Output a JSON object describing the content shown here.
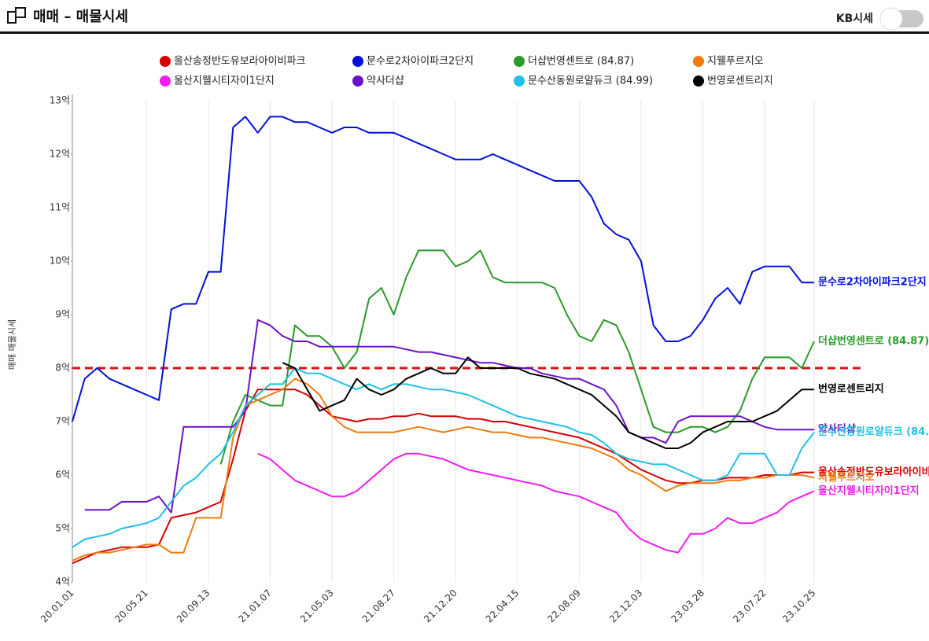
{
  "header": {
    "title": "매매 – 매물시세",
    "toggle_label": "KB시세"
  },
  "chart_data": {
    "type": "line",
    "ylabel": "매매 매물시세",
    "categories": [
      "20.01.01",
      null,
      null,
      null,
      null,
      null,
      "20.05.21",
      null,
      null,
      null,
      null,
      "20.09.13",
      null,
      null,
      null,
      null,
      "21.01.07",
      null,
      null,
      null,
      null,
      "21.05.03",
      null,
      null,
      null,
      null,
      "21.08.27",
      null,
      null,
      null,
      null,
      "21.12.20",
      null,
      null,
      null,
      null,
      "22.04.15",
      null,
      null,
      null,
      null,
      "22.08.09",
      null,
      null,
      null,
      null,
      "22.12.03",
      null,
      null,
      null,
      null,
      "23.03.28",
      null,
      null,
      null,
      null,
      "23.07.22",
      null,
      null,
      null,
      "23.10.25"
    ],
    "ylim": [
      4,
      13
    ],
    "yticks": [
      {
        "value": 4,
        "label": "4억"
      },
      {
        "value": 5,
        "label": "5억"
      },
      {
        "value": 6,
        "label": "6억"
      },
      {
        "value": 7,
        "label": "7억"
      },
      {
        "value": 8,
        "label": "8억"
      },
      {
        "value": 9,
        "label": "9억"
      },
      {
        "value": 10,
        "label": "10억"
      },
      {
        "value": 11,
        "label": "11억"
      },
      {
        "value": 12,
        "label": "12억"
      },
      {
        "value": 13,
        "label": "13억"
      }
    ],
    "grid": true,
    "reference_line": {
      "value": 8,
      "color": "#e01010"
    },
    "series": [
      {
        "name": "울산송정반도유보라아이비파크",
        "color": "#d40000",
        "values": [
          4.35,
          4.45,
          4.55,
          4.6,
          4.65,
          4.65,
          4.65,
          4.7,
          5.2,
          5.25,
          5.3,
          5.4,
          5.5,
          6.3,
          7.2,
          7.6,
          7.6,
          7.6,
          7.6,
          7.5,
          7.3,
          7.1,
          7.05,
          7.0,
          7.05,
          7.05,
          7.1,
          7.1,
          7.15,
          7.1,
          7.1,
          7.1,
          7.05,
          7.05,
          7.0,
          7.0,
          6.95,
          6.9,
          6.85,
          6.8,
          6.75,
          6.7,
          6.6,
          6.5,
          6.4,
          6.25,
          6.1,
          6.0,
          5.9,
          5.85,
          5.85,
          5.9,
          5.9,
          5.95,
          5.95,
          5.95,
          6.0,
          6.0,
          6.0,
          6.05,
          6.05
        ]
      },
      {
        "name": "문수로2차아이파크2단지",
        "color": "#0010d8",
        "values": [
          7.0,
          7.8,
          8.0,
          7.8,
          7.7,
          7.6,
          7.5,
          7.4,
          9.1,
          9.2,
          9.2,
          9.8,
          9.8,
          12.5,
          12.7,
          12.4,
          12.7,
          12.7,
          12.6,
          12.6,
          12.5,
          12.4,
          12.5,
          12.5,
          12.4,
          12.4,
          12.4,
          12.3,
          12.2,
          12.1,
          12.0,
          11.9,
          11.9,
          11.9,
          12.0,
          11.9,
          11.8,
          11.7,
          11.6,
          11.5,
          11.5,
          11.5,
          11.2,
          10.7,
          10.5,
          10.4,
          10.0,
          8.8,
          8.5,
          8.5,
          8.6,
          8.9,
          9.3,
          9.5,
          9.2,
          9.8,
          9.9,
          9.9,
          9.9,
          9.6,
          9.6
        ]
      },
      {
        "name": "더샵번영센트로 (84.87)",
        "color": "#2a9a2a",
        "values": [
          null,
          null,
          null,
          null,
          null,
          null,
          null,
          null,
          null,
          null,
          null,
          null,
          6.2,
          7.0,
          7.5,
          7.4,
          7.3,
          7.3,
          8.8,
          8.6,
          8.6,
          8.4,
          8.0,
          8.3,
          9.3,
          9.5,
          9.0,
          9.7,
          10.2,
          10.2,
          10.2,
          9.9,
          10.0,
          10.2,
          9.7,
          9.6,
          9.6,
          9.6,
          9.6,
          9.5,
          9.0,
          8.6,
          8.5,
          8.9,
          8.8,
          8.3,
          7.6,
          6.9,
          6.8,
          6.8,
          6.9,
          6.9,
          6.8,
          6.9,
          7.2,
          7.8,
          8.2,
          8.2,
          8.2,
          8.0,
          8.5
        ]
      },
      {
        "name": "지웰푸르지오",
        "color": "#f07a10",
        "values": [
          4.4,
          4.5,
          4.55,
          4.55,
          4.6,
          4.65,
          4.7,
          4.7,
          4.55,
          4.55,
          5.2,
          5.2,
          5.2,
          6.7,
          7.3,
          7.4,
          7.5,
          7.6,
          7.8,
          7.7,
          7.5,
          7.1,
          6.9,
          6.8,
          6.8,
          6.8,
          6.8,
          6.85,
          6.9,
          6.85,
          6.8,
          6.85,
          6.9,
          6.85,
          6.8,
          6.8,
          6.75,
          6.7,
          6.7,
          6.65,
          6.6,
          6.55,
          6.5,
          6.4,
          6.3,
          6.1,
          6.0,
          5.85,
          5.7,
          5.8,
          5.85,
          5.85,
          5.85,
          5.9,
          5.9,
          5.95,
          5.95,
          6.0,
          6.0,
          6.0,
          5.95
        ]
      },
      {
        "name": "울산지웰시티자이1단지",
        "color": "#f01cf0",
        "values": [
          null,
          null,
          null,
          null,
          null,
          null,
          null,
          null,
          null,
          null,
          null,
          null,
          null,
          null,
          null,
          6.4,
          6.3,
          6.1,
          5.9,
          5.8,
          5.7,
          5.6,
          5.6,
          5.7,
          5.9,
          6.1,
          6.3,
          6.4,
          6.4,
          6.35,
          6.3,
          6.2,
          6.1,
          6.05,
          6.0,
          5.95,
          5.9,
          5.85,
          5.8,
          5.7,
          5.65,
          5.6,
          5.5,
          5.4,
          5.3,
          5.0,
          4.8,
          4.7,
          4.6,
          4.55,
          4.9,
          4.9,
          5.0,
          5.2,
          5.1,
          5.1,
          5.2,
          5.3,
          5.5,
          5.6,
          5.7
        ]
      },
      {
        "name": "약사더샵",
        "color": "#6a12c8",
        "values": [
          null,
          5.35,
          5.35,
          5.35,
          5.5,
          5.5,
          5.5,
          5.6,
          5.3,
          6.9,
          6.9,
          6.9,
          6.9,
          6.9,
          7.2,
          8.9,
          8.8,
          8.6,
          8.5,
          8.5,
          8.4,
          8.4,
          8.4,
          8.4,
          8.4,
          8.4,
          8.4,
          8.35,
          8.3,
          8.3,
          8.25,
          8.2,
          8.15,
          8.1,
          8.1,
          8.05,
          8.0,
          8.0,
          7.9,
          7.85,
          7.8,
          7.8,
          7.7,
          7.6,
          7.3,
          6.8,
          6.7,
          6.7,
          6.6,
          7.0,
          7.1,
          7.1,
          7.1,
          7.1,
          7.1,
          7.0,
          6.9,
          6.85,
          6.85,
          6.85,
          6.85
        ]
      },
      {
        "name": "문수산동원로얄듀크 (84.99)",
        "color": "#20c0e8",
        "values": [
          4.65,
          4.8,
          4.85,
          4.9,
          5.0,
          5.05,
          5.1,
          5.2,
          5.5,
          5.8,
          5.95,
          6.2,
          6.4,
          6.8,
          7.3,
          7.5,
          7.7,
          7.7,
          8.0,
          7.9,
          7.9,
          7.8,
          7.7,
          7.6,
          7.7,
          7.6,
          7.7,
          7.7,
          7.65,
          7.6,
          7.6,
          7.55,
          7.5,
          7.4,
          7.3,
          7.2,
          7.1,
          7.05,
          7.0,
          6.95,
          6.9,
          6.8,
          6.75,
          6.6,
          6.4,
          6.3,
          6.25,
          6.2,
          6.2,
          6.1,
          6.0,
          5.9,
          5.9,
          6.0,
          6.4,
          6.4,
          6.4,
          6.0,
          6.0,
          6.5,
          6.8
        ]
      },
      {
        "name": "번영로센트리지",
        "color": "#000000",
        "values": [
          null,
          null,
          null,
          null,
          null,
          null,
          null,
          null,
          null,
          null,
          null,
          null,
          null,
          null,
          null,
          null,
          null,
          8.1,
          8.0,
          7.6,
          7.2,
          7.3,
          7.4,
          7.8,
          7.6,
          7.5,
          7.6,
          7.8,
          7.9,
          8.0,
          7.9,
          7.9,
          8.2,
          8.0,
          8.0,
          8.0,
          8.0,
          7.9,
          7.85,
          7.8,
          7.7,
          7.6,
          7.5,
          7.3,
          7.1,
          6.8,
          6.7,
          6.6,
          6.5,
          6.5,
          6.6,
          6.8,
          6.9,
          7.0,
          7.0,
          7.0,
          7.1,
          7.2,
          7.4,
          7.6,
          7.6
        ]
      }
    ]
  }
}
